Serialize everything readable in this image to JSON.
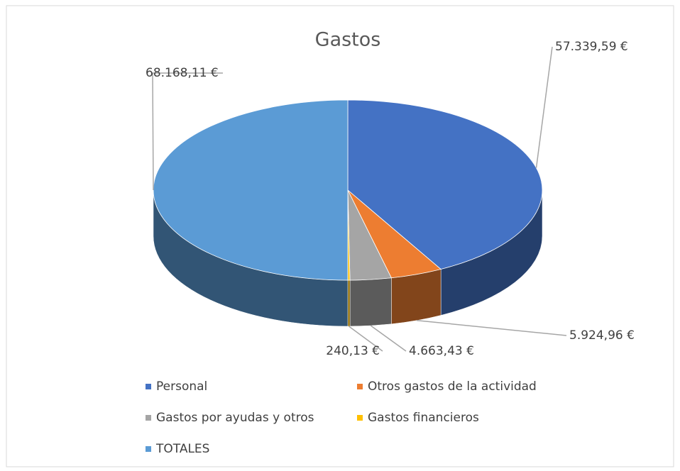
{
  "chart_data": {
    "type": "pie3d",
    "title": "Gastos",
    "categories": [
      "Personal",
      "Otros gastos de la actividad",
      "Gastos por ayudas y otros",
      "Gastos financieros",
      "TOTALES"
    ],
    "values": [
      57339.59,
      5924.96,
      4663.43,
      240.13,
      68168.11
    ],
    "value_labels": [
      "57.339,59 €",
      "5.924,96 €",
      "4.663,43 €",
      "240,13 €",
      "68.168,11 €"
    ],
    "colors": [
      "#4472c4",
      "#ed7d31",
      "#a5a5a5",
      "#ffc000",
      "#5b9bd5"
    ],
    "legend": "bottom"
  }
}
